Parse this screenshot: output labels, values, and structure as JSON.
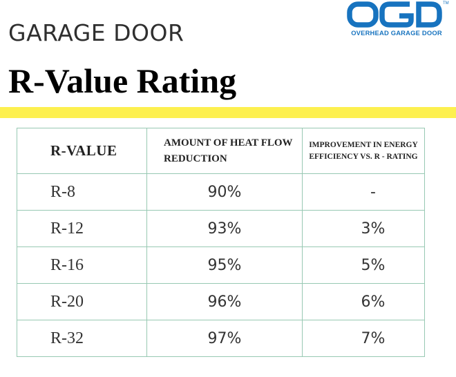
{
  "header": {
    "subtitle": "GARAGE DOOR",
    "title": "R-Value Rating"
  },
  "logo": {
    "wordmark": "OGD",
    "tagline": "OVERHEAD GARAGE DOOR",
    "trademark": "TM",
    "color": "#1773bf"
  },
  "accent_color": "#fdf04f",
  "table": {
    "headers": [
      "R-VALUE",
      "AMOUNT OF HEAT FLOW REDUCTION",
      "IMPROVEMENT IN ENERGY EFFICIENCY VS. R - RATING"
    ],
    "rows": [
      {
        "r_value": "R-8",
        "heat_flow_reduction": "90%",
        "improvement": "-"
      },
      {
        "r_value": "R-12",
        "heat_flow_reduction": "93%",
        "improvement": "3%"
      },
      {
        "r_value": "R-16",
        "heat_flow_reduction": "95%",
        "improvement": "5%"
      },
      {
        "r_value": "R-20",
        "heat_flow_reduction": "96%",
        "improvement": "6%"
      },
      {
        "r_value": "R-32",
        "heat_flow_reduction": "97%",
        "improvement": "7%"
      }
    ],
    "border_color": "#97c8b2"
  }
}
